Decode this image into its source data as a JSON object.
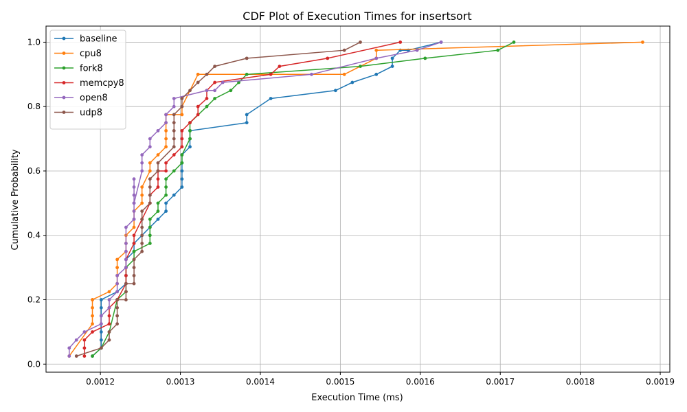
{
  "chart_data": {
    "type": "line",
    "title": "CDF Plot of Execution Times for insertsort",
    "xlabel": "Execution Time (ms)",
    "ylabel": "Cumulative Probability",
    "xlim": [
      0.001132,
      0.001912
    ],
    "ylim": [
      -0.025,
      1.05
    ],
    "xticks": [
      0.0012,
      0.0013,
      0.0014,
      0.0015,
      0.0016,
      0.0017,
      0.0018,
      0.0019
    ],
    "xtick_labels": [
      "0.0012",
      "0.0013",
      "0.0014",
      "0.0015",
      "0.0016",
      "0.0017",
      "0.0018",
      "0.0019"
    ],
    "yticks": [
      0.0,
      0.2,
      0.4,
      0.6,
      0.8,
      1.0
    ],
    "ytick_labels": [
      "0.0",
      "0.2",
      "0.4",
      "0.6",
      "0.8",
      "1.0"
    ],
    "grid": true,
    "legend_position": "top-left",
    "series": [
      {
        "name": "baseline",
        "color": "#1f77b4",
        "x": [
          0.00119,
          0.001201,
          0.001201,
          0.001201,
          0.001201,
          0.001201,
          0.001201,
          0.001201,
          0.001221,
          0.001232,
          0.001232,
          0.001232,
          0.001232,
          0.001242,
          0.001242,
          0.001252,
          0.001262,
          0.001272,
          0.001282,
          0.001282,
          0.001292,
          0.001302,
          0.001302,
          0.001302,
          0.001302,
          0.001302,
          0.001312,
          0.001312,
          0.001312,
          0.001383,
          0.001383,
          0.001413,
          0.001494,
          0.001515,
          0.001545,
          0.001565,
          0.001565,
          0.001575,
          0.001585,
          0.001626
        ],
        "y": [
          0.025,
          0.05,
          0.075,
          0.1,
          0.125,
          0.15,
          0.175,
          0.2,
          0.225,
          0.25,
          0.275,
          0.3,
          0.325,
          0.35,
          0.375,
          0.4,
          0.425,
          0.45,
          0.475,
          0.5,
          0.525,
          0.55,
          0.575,
          0.6,
          0.625,
          0.65,
          0.675,
          0.7,
          0.725,
          0.75,
          0.775,
          0.825,
          0.85,
          0.875,
          0.9,
          0.925,
          0.95,
          0.975,
          0.975,
          1.0
        ]
      },
      {
        "name": "cpu8",
        "color": "#ff7f0e",
        "x": [
          0.001161,
          0.00119,
          0.00119,
          0.00119,
          0.00119,
          0.00119,
          0.001211,
          0.001221,
          0.001221,
          0.001221,
          0.001221,
          0.001232,
          0.001232,
          0.001232,
          0.001242,
          0.001242,
          0.001252,
          0.001252,
          0.001252,
          0.001262,
          0.001262,
          0.001272,
          0.001282,
          0.001282,
          0.001282,
          0.001282,
          0.001282,
          0.001302,
          0.001302,
          0.001322,
          0.001505,
          0.001545,
          0.001545,
          0.001878
        ],
        "y": [
          0.025,
          0.125,
          0.15,
          0.175,
          0.2,
          0.2,
          0.225,
          0.25,
          0.275,
          0.3,
          0.325,
          0.35,
          0.375,
          0.4,
          0.425,
          0.475,
          0.5,
          0.525,
          0.55,
          0.6,
          0.625,
          0.65,
          0.675,
          0.7,
          0.725,
          0.75,
          0.775,
          0.775,
          0.8,
          0.9,
          0.9,
          0.95,
          0.975,
          1.0
        ]
      },
      {
        "name": "fork8",
        "color": "#2ca02c",
        "x": [
          0.00119,
          0.001201,
          0.001211,
          0.001221,
          0.001232,
          0.001232,
          0.001242,
          0.001242,
          0.001262,
          0.001262,
          0.001262,
          0.001262,
          0.001272,
          0.001272,
          0.001282,
          0.001282,
          0.001282,
          0.001292,
          0.001302,
          0.001302,
          0.001312,
          0.001312,
          0.001312,
          0.001333,
          0.001343,
          0.001363,
          0.001373,
          0.001383,
          0.001525,
          0.001606,
          0.001697,
          0.001717
        ],
        "y": [
          0.025,
          0.05,
          0.1,
          0.2,
          0.225,
          0.3,
          0.325,
          0.35,
          0.375,
          0.4,
          0.425,
          0.45,
          0.475,
          0.5,
          0.525,
          0.55,
          0.575,
          0.6,
          0.625,
          0.65,
          0.7,
          0.725,
          0.75,
          0.8,
          0.825,
          0.85,
          0.875,
          0.9,
          0.925,
          0.95,
          0.975,
          1.0
        ]
      },
      {
        "name": "memcpy8",
        "color": "#d62728",
        "x": [
          0.00118,
          0.00118,
          0.00118,
          0.00119,
          0.001211,
          0.001211,
          0.001211,
          0.001221,
          0.001232,
          0.001232,
          0.001232,
          0.001232,
          0.001242,
          0.001242,
          0.001252,
          0.001262,
          0.001262,
          0.001272,
          0.001272,
          0.001272,
          0.001282,
          0.001282,
          0.001292,
          0.001302,
          0.001302,
          0.001302,
          0.001312,
          0.001322,
          0.001322,
          0.001333,
          0.001333,
          0.001343,
          0.001413,
          0.001424,
          0.001484,
          0.001575
        ],
        "y": [
          0.025,
          0.05,
          0.075,
          0.1,
          0.125,
          0.15,
          0.175,
          0.2,
          0.25,
          0.275,
          0.3,
          0.325,
          0.375,
          0.4,
          0.45,
          0.5,
          0.525,
          0.55,
          0.575,
          0.6,
          0.6,
          0.625,
          0.65,
          0.675,
          0.7,
          0.725,
          0.75,
          0.775,
          0.8,
          0.825,
          0.85,
          0.875,
          0.9,
          0.925,
          0.95,
          1.0
        ]
      },
      {
        "name": "open8",
        "color": "#9467bd",
        "x": [
          0.001161,
          0.001161,
          0.00117,
          0.00118,
          0.001201,
          0.001201,
          0.001211,
          0.001211,
          0.001221,
          0.001221,
          0.001221,
          0.001232,
          0.001232,
          0.001232,
          0.001232,
          0.001232,
          0.001242,
          0.001242,
          0.001242,
          0.001242,
          0.001242,
          0.001242,
          0.001242,
          0.001242,
          0.001252,
          0.001252,
          0.001252,
          0.001262,
          0.001262,
          0.001272,
          0.001282,
          0.001282,
          0.001282,
          0.001292,
          0.001292,
          0.001333,
          0.001343,
          0.001353,
          0.001464,
          0.001545,
          0.001596,
          0.001626
        ],
        "y": [
          0.025,
          0.05,
          0.075,
          0.1,
          0.125,
          0.15,
          0.175,
          0.2,
          0.225,
          0.25,
          0.275,
          0.3,
          0.325,
          0.35,
          0.375,
          0.425,
          0.45,
          0.475,
          0.5,
          0.525,
          0.55,
          0.575,
          0.45,
          0.5,
          0.6,
          0.625,
          0.65,
          0.675,
          0.7,
          0.725,
          0.75,
          0.775,
          0.775,
          0.8,
          0.825,
          0.85,
          0.85,
          0.875,
          0.9,
          0.95,
          0.975,
          1.0
        ]
      },
      {
        "name": "udp8",
        "color": "#8c564b",
        "x": [
          0.00117,
          0.001201,
          0.001211,
          0.001211,
          0.001221,
          0.001221,
          0.001221,
          0.001221,
          0.001221,
          0.001232,
          0.001232,
          0.001232,
          0.001242,
          0.001242,
          0.001242,
          0.001242,
          0.001252,
          0.001252,
          0.001252,
          0.001252,
          0.001252,
          0.001252,
          0.001262,
          0.001262,
          0.001262,
          0.001262,
          0.001272,
          0.001272,
          0.001292,
          0.001292,
          0.001292,
          0.001292,
          0.001292,
          0.001302,
          0.001302,
          0.001312,
          0.001322,
          0.001333,
          0.001343,
          0.001383,
          0.001505,
          0.001525
        ],
        "y": [
          0.025,
          0.05,
          0.075,
          0.1,
          0.125,
          0.15,
          0.175,
          0.2,
          0.2,
          0.2,
          0.225,
          0.25,
          0.25,
          0.275,
          0.3,
          0.325,
          0.35,
          0.375,
          0.4,
          0.425,
          0.45,
          0.475,
          0.5,
          0.525,
          0.55,
          0.575,
          0.6,
          0.625,
          0.675,
          0.7,
          0.725,
          0.75,
          0.775,
          0.8,
          0.825,
          0.85,
          0.875,
          0.9,
          0.925,
          0.95,
          0.975,
          1.0
        ]
      }
    ]
  }
}
